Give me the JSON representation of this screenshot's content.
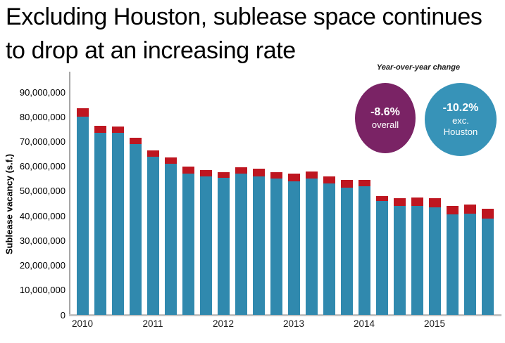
{
  "title": {
    "line1": "Excluding Houston, sublease space continues",
    "line2": "to drop at an increasing rate",
    "full": "Excluding Houston, sublease space continues to drop at an increasing rate"
  },
  "badges": {
    "label": "Year-over-year change",
    "overall": {
      "value": "-8.6%",
      "caption": "overall",
      "color": "#7a2365"
    },
    "exc_houston": {
      "value": "-10.2%",
      "caption_line1": "exc.",
      "caption_line2": "Houston",
      "color": "#3793b8"
    }
  },
  "chart_data": {
    "type": "bar",
    "stacked": true,
    "title": "",
    "xlabel": "",
    "ylabel": "Sublease vacancy (s.f.)",
    "ylim": [
      0,
      90000000
    ],
    "ytick_step": 10000000,
    "ytick_labels": [
      "0",
      "10,000,000",
      "20,000,000",
      "30,000,000",
      "40,000,000",
      "50,000,000",
      "60,000,000",
      "70,000,000",
      "80,000,000",
      "90,000,000"
    ],
    "x_axis_labels": [
      "2010",
      "2011",
      "2012",
      "2013",
      "2014",
      "2015"
    ],
    "categories": [
      "2010 Q1",
      "2010 Q2",
      "2010 Q3",
      "2010 Q4",
      "2011 Q1",
      "2011 Q2",
      "2011 Q3",
      "2011 Q4",
      "2012 Q1",
      "2012 Q2",
      "2012 Q3",
      "2012 Q4",
      "2013 Q1",
      "2013 Q2",
      "2013 Q3",
      "2013 Q4",
      "2014 Q1",
      "2014 Q2",
      "2014 Q3",
      "2014 Q4",
      "2015 Q1",
      "2015 Q2",
      "2015 Q3",
      "2015 Q4"
    ],
    "series": [
      {
        "name": "exc. Houston",
        "color": "#3089ae",
        "values": [
          80000000,
          73500000,
          73500000,
          69000000,
          64000000,
          61000000,
          57000000,
          56000000,
          55500000,
          57000000,
          56000000,
          55000000,
          54000000,
          55000000,
          53000000,
          51500000,
          52000000,
          46000000,
          44000000,
          44000000,
          43500000,
          40500000,
          41000000,
          39000000
        ]
      },
      {
        "name": "Houston",
        "color": "#be1620",
        "values": [
          3500000,
          3000000,
          2500000,
          2500000,
          2500000,
          2500000,
          3000000,
          2500000,
          2000000,
          2500000,
          3000000,
          2500000,
          3000000,
          3000000,
          3000000,
          3000000,
          2500000,
          2000000,
          3000000,
          3500000,
          3500000,
          3500000,
          3500000,
          4000000
        ]
      }
    ],
    "gridlines": false,
    "legend_position": "none"
  }
}
